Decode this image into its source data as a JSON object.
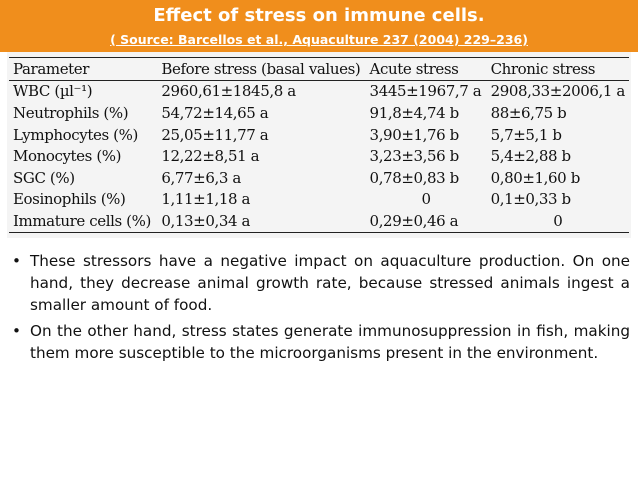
{
  "header": {
    "title": "Effect of stress on immune cells.",
    "source": "( Source: Barcellos et al., Aquaculture 237 (2004) 229–236)",
    "background_color": "#f08e1c"
  },
  "table": {
    "columns": [
      "Parameter",
      "Before stress (basal values)",
      "Acute stress",
      "Chronic stress"
    ],
    "rows": [
      [
        "WBC (µl⁻¹)",
        "2960,61±1845,8 a",
        "3445±1967,7 a",
        "2908,33±2006,1 a"
      ],
      [
        "Neutrophils (%)",
        "54,72±14,65 a",
        "91,8±4,74 b",
        "88±6,75 b"
      ],
      [
        "Lymphocytes (%)",
        "25,05±11,77 a",
        "3,90±1,76 b",
        "5,7±5,1 b"
      ],
      [
        "Monocytes (%)",
        "12,22±8,51 a",
        "3,23±3,56 b",
        "5,4±2,88 b"
      ],
      [
        "SGC (%)",
        "6,77±6,3 a",
        "0,78±0,83 b",
        "0,80±1,60 b"
      ],
      [
        "Eosinophils (%)",
        "1,11±1,18 a",
        "0",
        "0,1±0,33 b"
      ],
      [
        "Immature cells (%)",
        "0,13±0,34 a",
        "0,29±0,46 a",
        "0"
      ]
    ]
  },
  "bullets": [
    "These stressors have a negative impact on aquaculture production. On one hand, they decrease animal growth rate, because stressed animals ingest a smaller amount of food.",
    "On the other hand, stress states generate immunosuppression in fish, making them more susceptible to the microorganisms present in the environment."
  ],
  "bullet_symbol": "•"
}
